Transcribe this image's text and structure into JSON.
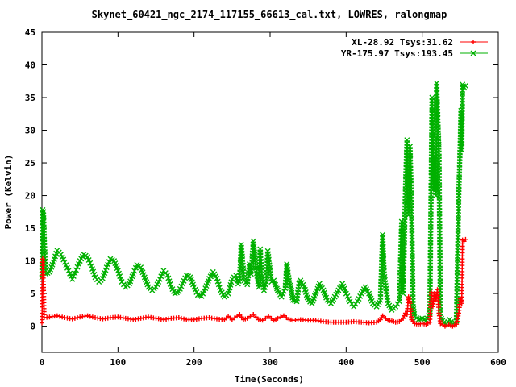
{
  "chart_data": {
    "type": "line",
    "title": "Skynet_60421_ngc_2174_117155_66613_cal.txt, LOWRES, ralongmap",
    "xlabel": "Time(Seconds)",
    "ylabel": "Power (Kelvin)",
    "xlim": [
      0,
      600
    ],
    "ylim": [
      -4,
      45
    ],
    "xticks": [
      0,
      100,
      200,
      300,
      400,
      500,
      600
    ],
    "yticks": [
      0,
      5,
      10,
      15,
      20,
      25,
      30,
      35,
      40,
      45
    ],
    "grid": false,
    "legend_position": "top-right",
    "series": [
      {
        "name": "XL-28.92 Tsys:31.62",
        "color": "#ff0000",
        "marker": "plus",
        "points": [
          [
            0,
            0.5
          ],
          [
            1,
            10.3
          ],
          [
            2,
            6.4
          ],
          [
            3,
            1.3
          ],
          [
            10,
            1.4
          ],
          [
            20,
            1.6
          ],
          [
            30,
            1.3
          ],
          [
            40,
            1.1
          ],
          [
            50,
            1.4
          ],
          [
            60,
            1.6
          ],
          [
            70,
            1.3
          ],
          [
            80,
            1.1
          ],
          [
            90,
            1.3
          ],
          [
            100,
            1.4
          ],
          [
            110,
            1.2
          ],
          [
            120,
            1.0
          ],
          [
            130,
            1.2
          ],
          [
            140,
            1.4
          ],
          [
            150,
            1.2
          ],
          [
            160,
            1.0
          ],
          [
            170,
            1.2
          ],
          [
            180,
            1.3
          ],
          [
            190,
            1.0
          ],
          [
            200,
            1.0
          ],
          [
            210,
            1.2
          ],
          [
            220,
            1.3
          ],
          [
            230,
            1.1
          ],
          [
            240,
            1.0
          ],
          [
            245,
            1.5
          ],
          [
            250,
            1.0
          ],
          [
            260,
            1.8
          ],
          [
            265,
            1.0
          ],
          [
            270,
            1.2
          ],
          [
            278,
            1.8
          ],
          [
            285,
            1.0
          ],
          [
            290,
            0.9
          ],
          [
            298,
            1.5
          ],
          [
            305,
            0.9
          ],
          [
            310,
            1.2
          ],
          [
            318,
            1.6
          ],
          [
            325,
            1.0
          ],
          [
            330,
            0.9
          ],
          [
            340,
            1.0
          ],
          [
            350,
            0.9
          ],
          [
            360,
            0.9
          ],
          [
            370,
            0.7
          ],
          [
            380,
            0.6
          ],
          [
            390,
            0.6
          ],
          [
            400,
            0.6
          ],
          [
            410,
            0.7
          ],
          [
            420,
            0.6
          ],
          [
            430,
            0.5
          ],
          [
            440,
            0.6
          ],
          [
            445,
            1.0
          ],
          [
            448,
            1.6
          ],
          [
            452,
            1.2
          ],
          [
            455,
            0.9
          ],
          [
            460,
            0.8
          ],
          [
            465,
            0.6
          ],
          [
            470,
            0.7
          ],
          [
            475,
            1.2
          ],
          [
            478,
            2.0
          ],
          [
            480,
            1.8
          ],
          [
            482,
            4.5
          ],
          [
            484,
            3.5
          ],
          [
            486,
            1.0
          ],
          [
            490,
            0.4
          ],
          [
            495,
            0.3
          ],
          [
            500,
            0.4
          ],
          [
            505,
            0.3
          ],
          [
            510,
            0.6
          ],
          [
            512,
            5.2
          ],
          [
            514,
            3.0
          ],
          [
            516,
            5.0
          ],
          [
            518,
            4.0
          ],
          [
            520,
            5.6
          ],
          [
            522,
            2.0
          ],
          [
            524,
            0.4
          ],
          [
            530,
            0.0
          ],
          [
            535,
            0.2
          ],
          [
            540,
            0.0
          ],
          [
            545,
            0.3
          ],
          [
            548,
            2.0
          ],
          [
            550,
            4.2
          ],
          [
            552,
            3.5
          ],
          [
            553,
            13.2
          ],
          [
            555,
            13.0
          ],
          [
            557,
            13.3
          ]
        ]
      },
      {
        "name": "YR-175.97 Tsys:193.45",
        "color": "#00b000",
        "marker": "x",
        "points": [
          [
            0,
            7.5
          ],
          [
            1,
            17.8
          ],
          [
            2,
            17.5
          ],
          [
            3,
            13.3
          ],
          [
            5,
            8.0
          ],
          [
            10,
            8.3
          ],
          [
            15,
            9.8
          ],
          [
            20,
            11.6
          ],
          [
            25,
            11.0
          ],
          [
            30,
            9.8
          ],
          [
            35,
            8.5
          ],
          [
            40,
            7.2
          ],
          [
            45,
            8.6
          ],
          [
            50,
            10.0
          ],
          [
            55,
            11.0
          ],
          [
            60,
            10.6
          ],
          [
            65,
            9.2
          ],
          [
            70,
            7.5
          ],
          [
            75,
            6.8
          ],
          [
            80,
            7.3
          ],
          [
            85,
            9.0
          ],
          [
            90,
            10.3
          ],
          [
            95,
            10.0
          ],
          [
            100,
            8.5
          ],
          [
            105,
            6.8
          ],
          [
            110,
            6.0
          ],
          [
            115,
            6.5
          ],
          [
            120,
            8.0
          ],
          [
            125,
            9.4
          ],
          [
            130,
            9.0
          ],
          [
            135,
            7.5
          ],
          [
            140,
            6.0
          ],
          [
            145,
            5.5
          ],
          [
            150,
            6.0
          ],
          [
            155,
            7.2
          ],
          [
            160,
            8.5
          ],
          [
            165,
            7.8
          ],
          [
            170,
            6.0
          ],
          [
            175,
            5.0
          ],
          [
            180,
            5.3
          ],
          [
            185,
            6.5
          ],
          [
            190,
            7.8
          ],
          [
            195,
            7.5
          ],
          [
            200,
            6.0
          ],
          [
            205,
            4.8
          ],
          [
            210,
            4.6
          ],
          [
            215,
            5.8
          ],
          [
            220,
            7.3
          ],
          [
            225,
            8.3
          ],
          [
            230,
            7.3
          ],
          [
            235,
            5.5
          ],
          [
            240,
            4.5
          ],
          [
            245,
            5.0
          ],
          [
            250,
            7.2
          ],
          [
            255,
            7.8
          ],
          [
            258,
            6.5
          ],
          [
            260,
            7.3
          ],
          [
            262,
            12.5
          ],
          [
            264,
            9.8
          ],
          [
            266,
            7.0
          ],
          [
            270,
            6.4
          ],
          [
            273,
            9.5
          ],
          [
            275,
            8.0
          ],
          [
            278,
            13.0
          ],
          [
            280,
            10.5
          ],
          [
            282,
            8.5
          ],
          [
            285,
            6.0
          ],
          [
            287,
            11.8
          ],
          [
            289,
            8.0
          ],
          [
            292,
            5.5
          ],
          [
            295,
            6.8
          ],
          [
            297,
            11.5
          ],
          [
            300,
            8.5
          ],
          [
            302,
            6.8
          ],
          [
            305,
            7.0
          ],
          [
            308,
            6.0
          ],
          [
            310,
            5.5
          ],
          [
            315,
            4.5
          ],
          [
            320,
            5.8
          ],
          [
            322,
            9.5
          ],
          [
            325,
            7.0
          ],
          [
            328,
            5.5
          ],
          [
            330,
            4.0
          ],
          [
            335,
            3.8
          ],
          [
            338,
            6.5
          ],
          [
            340,
            7.0
          ],
          [
            345,
            6.0
          ],
          [
            350,
            4.0
          ],
          [
            355,
            3.5
          ],
          [
            360,
            5.0
          ],
          [
            365,
            6.5
          ],
          [
            370,
            5.5
          ],
          [
            375,
            4.0
          ],
          [
            380,
            3.5
          ],
          [
            385,
            4.5
          ],
          [
            390,
            5.5
          ],
          [
            395,
            6.5
          ],
          [
            400,
            5.0
          ],
          [
            405,
            3.8
          ],
          [
            410,
            3.0
          ],
          [
            415,
            3.8
          ],
          [
            420,
            5.0
          ],
          [
            425,
            6.0
          ],
          [
            430,
            5.0
          ],
          [
            435,
            3.5
          ],
          [
            440,
            3.0
          ],
          [
            445,
            4.0
          ],
          [
            448,
            14.0
          ],
          [
            450,
            8.0
          ],
          [
            455,
            3.5
          ],
          [
            460,
            2.5
          ],
          [
            465,
            3.0
          ],
          [
            470,
            3.8
          ],
          [
            473,
            16.0
          ],
          [
            475,
            5.0
          ],
          [
            478,
            21.0
          ],
          [
            480,
            28.5
          ],
          [
            482,
            17.0
          ],
          [
            484,
            27.5
          ],
          [
            486,
            18.0
          ],
          [
            488,
            3.0
          ],
          [
            490,
            1.5
          ],
          [
            495,
            1.0
          ],
          [
            500,
            1.2
          ],
          [
            505,
            0.8
          ],
          [
            510,
            2.0
          ],
          [
            512,
            24.0
          ],
          [
            513,
            35.0
          ],
          [
            515,
            21.0
          ],
          [
            517,
            26.0
          ],
          [
            518,
            20.0
          ],
          [
            519,
            37.2
          ],
          [
            521,
            30.0
          ],
          [
            522,
            27.0
          ],
          [
            524,
            1.5
          ],
          [
            528,
            0.5
          ],
          [
            532,
            0.3
          ],
          [
            536,
            1.0
          ],
          [
            540,
            0.3
          ],
          [
            545,
            0.8
          ],
          [
            548,
            20.0
          ],
          [
            550,
            28.0
          ],
          [
            551,
            33.0
          ],
          [
            552,
            27.0
          ],
          [
            553,
            37.0
          ],
          [
            555,
            36.5
          ],
          [
            557,
            36.8
          ]
        ]
      }
    ]
  }
}
